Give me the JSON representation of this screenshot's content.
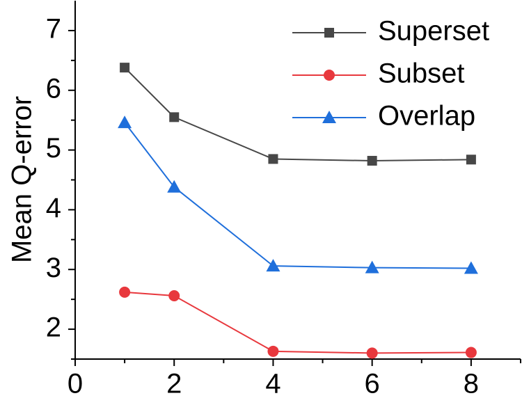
{
  "chart_data": {
    "type": "line",
    "y_label": "Mean Q-error",
    "x": [
      1,
      2,
      4,
      6,
      8
    ],
    "series": [
      {
        "name": "Superset",
        "color": "#474747",
        "marker": "square",
        "values": [
          6.38,
          5.55,
          4.85,
          4.82,
          4.84
        ]
      },
      {
        "name": "Subset",
        "color": "#e8383d",
        "marker": "circle",
        "values": [
          2.62,
          2.56,
          1.63,
          1.6,
          1.61
        ]
      },
      {
        "name": "Overlap",
        "color": "#1f6fdb",
        "marker": "triangle",
        "values": [
          5.46,
          4.38,
          3.06,
          3.03,
          3.02
        ]
      }
    ],
    "xlim": [
      0,
      9
    ],
    "xticks": [
      0,
      2,
      4,
      6,
      8
    ],
    "ylim": [
      1.5,
      7.5
    ],
    "yticks": [
      2,
      3,
      4,
      5,
      6,
      7
    ],
    "legend": "upper right",
    "grid": false
  }
}
